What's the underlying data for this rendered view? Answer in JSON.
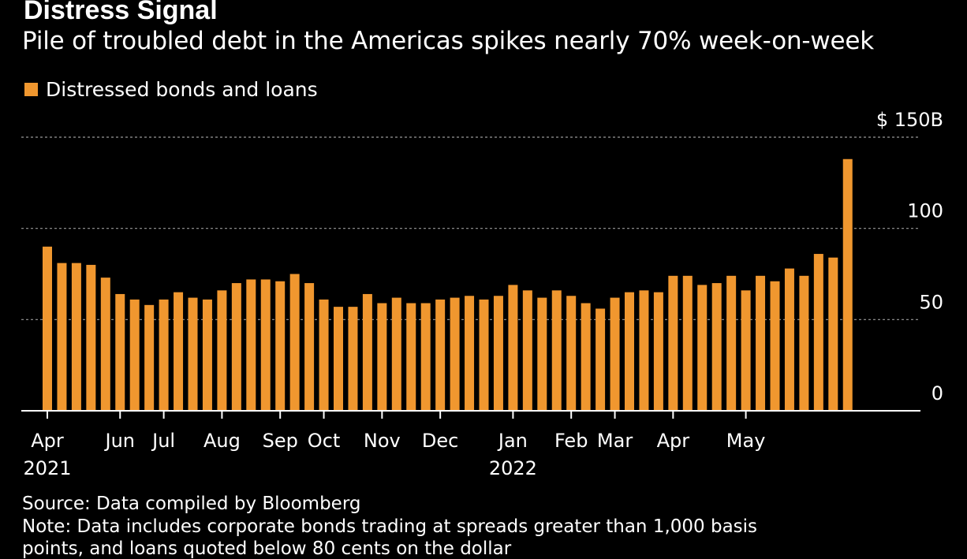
{
  "title": "Distress Signal",
  "subtitle": "Pile of troubled debt in the Americas spikes nearly 70% week-on-week",
  "legend": {
    "label": "Distressed bonds and loans"
  },
  "source": "Source: Data compiled by Bloomberg",
  "note": "Note: Data includes corporate bonds trading at spreads greater than 1,000 basis",
  "note_2": "points, and loans quoted below 80 cents on the dollar",
  "colors": {
    "bar": "#F0972F",
    "background": "#000000",
    "grid": "#9a9a9a",
    "text": "#ffffff"
  },
  "chart_data": {
    "type": "bar",
    "series": [
      {
        "name": "Distressed bonds and loans",
        "values": [
          90,
          81,
          81,
          80,
          73,
          64,
          61,
          58,
          61,
          65,
          62,
          61,
          66,
          70,
          72,
          72,
          71,
          75,
          70,
          61,
          57,
          57,
          64,
          59,
          62,
          59,
          59,
          61,
          62,
          63,
          61,
          63,
          69,
          66,
          62,
          66,
          63,
          59,
          56,
          62,
          65,
          66,
          65,
          74,
          74,
          69,
          70,
          74,
          66,
          74,
          71,
          78,
          74,
          86,
          84,
          138
        ]
      }
    ],
    "x_tick_labels": [
      {
        "label": "Apr",
        "year": "2021",
        "index": 0
      },
      {
        "label": "Jun",
        "index": 5
      },
      {
        "label": "Jul",
        "index": 8
      },
      {
        "label": "Aug",
        "index": 12
      },
      {
        "label": "Sep",
        "index": 16
      },
      {
        "label": "Oct",
        "index": 19
      },
      {
        "label": "Nov",
        "index": 23
      },
      {
        "label": "Dec",
        "index": 27
      },
      {
        "label": "Jan",
        "year": "2022",
        "index": 32
      },
      {
        "label": "Feb",
        "index": 36
      },
      {
        "label": "Mar",
        "index": 39
      },
      {
        "label": "Apr",
        "index": 43
      },
      {
        "label": "May",
        "index": 48
      }
    ],
    "y_ticks": [
      {
        "value": 0,
        "label": "0"
      },
      {
        "value": 50,
        "label": "50"
      },
      {
        "value": 100,
        "label": "100"
      },
      {
        "value": 150,
        "label": "$ 150B"
      }
    ],
    "ylim": [
      0,
      150
    ],
    "grid": true,
    "legend_position": "top-left"
  }
}
